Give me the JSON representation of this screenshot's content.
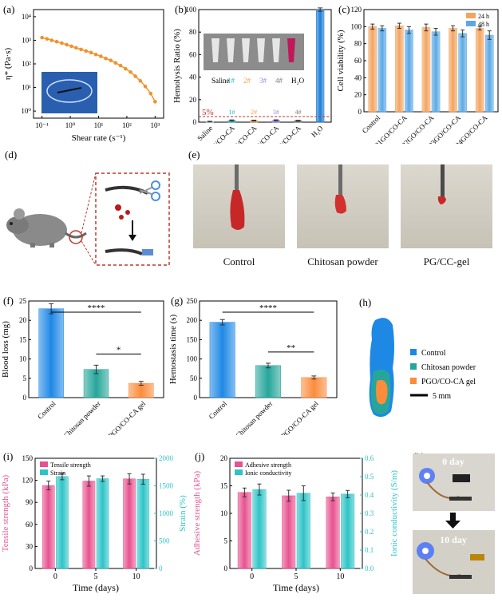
{
  "panels": {
    "a": {
      "letter": "(a)",
      "chart_data": {
        "type": "line",
        "xscale": "log",
        "yscale": "log",
        "xlabel": "Shear rate (s⁻¹)",
        "ylabel": "η* (Pa·s)",
        "xlim": [
          0.05,
          2000
        ],
        "ylim": [
          0.5,
          20000
        ],
        "xticks": [
          0.1,
          1,
          10,
          100,
          1000
        ],
        "xtick_labels": [
          "10⁻¹",
          "10⁰",
          "10¹",
          "10²",
          "10³"
        ],
        "yticks": [
          1,
          10,
          100,
          1000,
          10000
        ],
        "ytick_labels": [
          "10⁰",
          "10¹",
          "10²",
          "10³",
          "10⁴"
        ],
        "color": "#f0922b",
        "x": [
          0.1,
          0.15,
          0.22,
          0.33,
          0.5,
          0.75,
          1.1,
          1.6,
          2.4,
          3.6,
          5.4,
          8,
          12,
          18,
          27,
          40,
          60,
          90,
          135,
          200,
          300,
          450,
          700,
          1000
        ],
        "y": [
          1300,
          1150,
          1000,
          870,
          760,
          650,
          560,
          480,
          410,
          350,
          300,
          250,
          210,
          170,
          140,
          110,
          85,
          62,
          45,
          30,
          19,
          11,
          5.5,
          2.5
        ]
      }
    },
    "b": {
      "letter": "(b)",
      "chart_data": {
        "type": "bar",
        "ylabel": "Hemolysis Ratio (%)",
        "ylim": [
          0,
          100
        ],
        "yticks": [
          0,
          20,
          40,
          60,
          80,
          100
        ],
        "categories": [
          "Saline",
          "P1GO/CO-CA",
          "P2GO/CO-CA",
          "P3GO/CO-CA",
          "P4GO/CO-CA",
          "H₂O"
        ],
        "values": [
          0.5,
          1.5,
          1.4,
          1.6,
          1.3,
          100
        ],
        "errors": [
          0.3,
          0.5,
          0.4,
          0.5,
          0.4,
          1.5
        ],
        "colors": [
          "#8bd3f0",
          "#2ab7c2",
          "#f6a34b",
          "#9b86e8",
          "#7a7a7a",
          "#1e7ed6"
        ],
        "annotations": [
          "1#",
          "2#",
          "3#",
          "4#"
        ],
        "threshold": 5,
        "threshold_label": "5%"
      },
      "photo_labels": [
        "Saline",
        "1#",
        "2#",
        "3#",
        "4#",
        "H₂O"
      ]
    },
    "c": {
      "letter": "(c)",
      "chart_data": {
        "type": "bar",
        "ylabel": "Cell viability (%)",
        "ylim": [
          0,
          120
        ],
        "yticks": [
          0,
          20,
          40,
          60,
          80,
          100,
          120
        ],
        "categories": [
          "Control",
          "P1GO/CO-CA",
          "P2GO/CO-CA",
          "P3GO/CO-CA",
          "P4GO/CO-CA"
        ],
        "series": [
          {
            "name": "24 h",
            "color": "#f4a460",
            "values": [
              100,
              101,
              99,
              98,
              98
            ],
            "errors": [
              3,
              3,
              4,
              3,
              2
            ]
          },
          {
            "name": "48 h",
            "color": "#5aa9e6",
            "values": [
              98,
              96,
              94,
              92,
              90
            ],
            "errors": [
              3,
              4,
              4,
              4,
              5
            ]
          }
        ]
      }
    },
    "d": {
      "letter": "(d)"
    },
    "e": {
      "letter": "(e)",
      "photo_labels": [
        "Control",
        "Chitosan powder",
        "PG/CC-gel"
      ]
    },
    "f": {
      "letter": "(f)",
      "chart_data": {
        "type": "bar",
        "ylabel": "Blood loss (mg)",
        "ylim": [
          0,
          25
        ],
        "yticks": [
          0,
          5,
          10,
          15,
          20,
          25
        ],
        "categories": [
          "Control",
          "Chitosan powder",
          "PGO/CO-CA gel"
        ],
        "values": [
          23,
          7.3,
          3.7
        ],
        "errors": [
          1.3,
          1.1,
          0.5
        ],
        "colors": [
          "#1e88e5",
          "#26a69a",
          "#fb8c3c"
        ],
        "significance": [
          {
            "from": 0,
            "to": 2,
            "label": "****"
          },
          {
            "from": 1,
            "to": 2,
            "label": "*"
          }
        ]
      }
    },
    "g": {
      "letter": "(g)",
      "chart_data": {
        "type": "bar",
        "ylabel": "Hemostasis time (s)",
        "ylim": [
          0,
          250
        ],
        "yticks": [
          0,
          50,
          100,
          150,
          200,
          250
        ],
        "categories": [
          "Control",
          "Chitosan powder",
          "PGO/CO-CA gel"
        ],
        "values": [
          195,
          83,
          52
        ],
        "errors": [
          7,
          6,
          4
        ],
        "colors": [
          "#1e88e5",
          "#26a69a",
          "#fb8c3c"
        ],
        "significance": [
          {
            "from": 0,
            "to": 2,
            "label": "****"
          },
          {
            "from": 1,
            "to": 2,
            "label": "**"
          }
        ]
      }
    },
    "h": {
      "letter": "(h)",
      "legend": [
        {
          "label": "Control",
          "color": "#1e88e5"
        },
        {
          "label": "Chitosan powder",
          "color": "#26a69a"
        },
        {
          "label": "PGO/CO-CA gel",
          "color": "#fb8c3c"
        }
      ],
      "scale_label": "5 mm"
    },
    "i": {
      "letter": "(i)",
      "chart_data": {
        "type": "bar",
        "xlabel": "Time (days)",
        "ylabel_left": "Tensile strength (kPa)",
        "ylabel_right": "Strain (%)",
        "ylim_left": [
          0,
          150
        ],
        "yticks_left": [
          0,
          30,
          60,
          90,
          120,
          150
        ],
        "ylim_right": [
          0,
          2000
        ],
        "yticks_right": [
          0,
          500,
          1000,
          1500,
          2000
        ],
        "categories": [
          "0",
          "5",
          "10"
        ],
        "series": [
          {
            "name": "Tensile strength",
            "axis": "left",
            "color": "#e8528f",
            "values": [
              113,
              119,
              122
            ],
            "errors": [
              6,
              7,
              7
            ]
          },
          {
            "name": "Strain",
            "axis": "right",
            "color": "#2ec4c7",
            "values": [
              1670,
              1630,
              1620
            ],
            "errors": [
              60,
              50,
              90
            ]
          }
        ]
      }
    },
    "j": {
      "letter": "(j)",
      "chart_data": {
        "type": "bar",
        "xlabel": "Time (days)",
        "ylabel_left": "Adhesive strength (kPa)",
        "ylabel_right": "Ionic conductivity (S/m)",
        "ylim_left": [
          0,
          20
        ],
        "yticks_left": [
          0,
          5,
          10,
          15,
          20
        ],
        "ylim_right": [
          0,
          0.6
        ],
        "yticks_right": [
          0.0,
          0.1,
          0.2,
          0.3,
          0.4,
          0.5,
          0.6
        ],
        "categories": [
          "0",
          "5",
          "10"
        ],
        "series": [
          {
            "name": "Adhesive strength",
            "axis": "left",
            "color": "#e8528f",
            "values": [
              13.8,
              13.2,
              13.0
            ],
            "errors": [
              0.8,
              1.0,
              0.7
            ]
          },
          {
            "name": "Ionic conductivity",
            "axis": "right",
            "color": "#2ec4c7",
            "values": [
              0.43,
              0.41,
              0.405
            ],
            "errors": [
              0.03,
              0.04,
              0.02
            ]
          }
        ]
      }
    },
    "k": {
      "letter": "(k)",
      "labels": [
        "0 day",
        "10 day"
      ]
    }
  }
}
